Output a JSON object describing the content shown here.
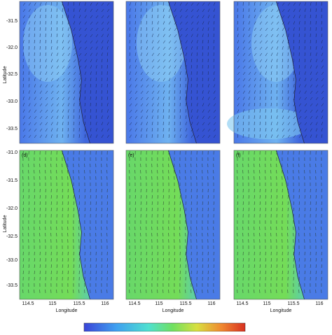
{
  "top_row": {
    "y_label": "Latitude",
    "y_ticks": [
      "-31.5",
      "-32.0",
      "-32.5",
      "-33.0",
      "-33.5"
    ]
  },
  "bottom_row": {
    "y_label": "Latitude",
    "y_ticks": [
      "-31.0",
      "-31.5",
      "-32.0",
      "-32.5",
      "-33.0",
      "-33.5"
    ],
    "x_label": "Longitude",
    "x_ticks": [
      "114.5",
      "115",
      "115.5",
      "116"
    ]
  },
  "panels": [
    {
      "label": "(d)"
    },
    {
      "label": "(e)"
    },
    {
      "label": "(f)"
    }
  ]
}
